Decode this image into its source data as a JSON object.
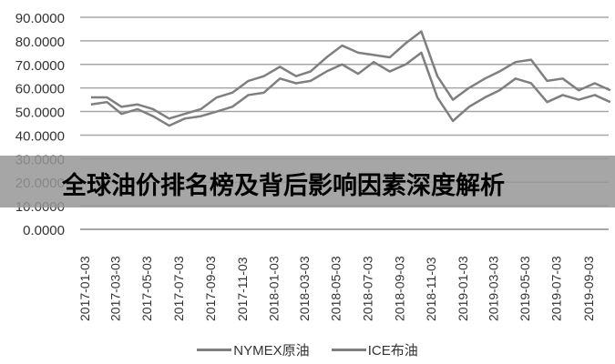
{
  "chart_data": {
    "type": "line",
    "title": "",
    "xlabel": "",
    "ylabel": "",
    "ylim": [
      0,
      90
    ],
    "y_ticks": [
      "0.0000",
      "10.0000",
      "20.0000",
      "30.0000",
      "40.0000",
      "50.0000",
      "60.0000",
      "70.0000",
      "80.0000",
      "90.0000"
    ],
    "x_ticks": [
      "2017-01-03",
      "2017-03-03",
      "2017-05-03",
      "2017-07-03",
      "2017-09-03",
      "2017-11-03",
      "2018-01-03",
      "2018-03-03",
      "2018-05-03",
      "2018-07-03",
      "2018-09-03",
      "2018-11-03",
      "2019-01-03",
      "2019-03-03",
      "2019-05-03",
      "2019-07-03",
      "2019-09-03"
    ],
    "grid": true,
    "legend_position": "bottom",
    "line_color": "#7f7f7f",
    "x": [
      "2017-01",
      "2017-02",
      "2017-03",
      "2017-04",
      "2017-05",
      "2017-06",
      "2017-07",
      "2017-08",
      "2017-09",
      "2017-10",
      "2017-11",
      "2017-12",
      "2018-01",
      "2018-02",
      "2018-03",
      "2018-04",
      "2018-05",
      "2018-06",
      "2018-07",
      "2018-08",
      "2018-09",
      "2018-10",
      "2018-11",
      "2018-12",
      "2019-01",
      "2019-02",
      "2019-03",
      "2019-04",
      "2019-05",
      "2019-06",
      "2019-07",
      "2019-08",
      "2019-09",
      "2019-10"
    ],
    "series": [
      {
        "name": "NYMEX原油",
        "values": [
          53,
          54,
          49,
          51,
          48,
          44,
          47,
          48,
          50,
          52,
          57,
          58,
          64,
          62,
          63,
          67,
          70,
          66,
          71,
          67,
          70,
          75,
          56,
          46,
          52,
          56,
          59,
          64,
          62,
          54,
          57,
          55,
          57,
          54
        ]
      },
      {
        "name": "ICE布油",
        "values": [
          56,
          56,
          52,
          53,
          51,
          47,
          49,
          51,
          56,
          58,
          63,
          65,
          69,
          65,
          67,
          73,
          78,
          75,
          74,
          73,
          79,
          84,
          65,
          55,
          60,
          64,
          67,
          71,
          72,
          63,
          64,
          59,
          62,
          59
        ]
      }
    ]
  },
  "banner": {
    "title": "全球油价排名榜及背后影响因素深度解析"
  }
}
